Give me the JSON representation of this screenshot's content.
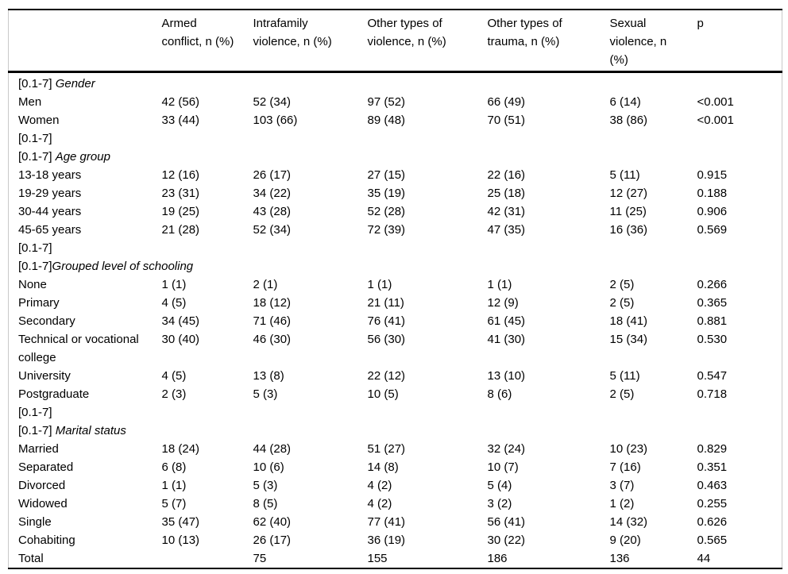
{
  "page": {
    "background": "#ffffff",
    "text_color": "#000000",
    "rule_color": "#000000",
    "side_border_color": "#c9c9c9"
  },
  "table": {
    "row_header_label": "",
    "columns": [
      "Armed conflict, n (%)",
      "Intrafamily violence, n (%)",
      "Other types of violence, n (%)",
      "Other types of trauma, n (%)",
      "Sexual violence, n (%)",
      "p"
    ],
    "rows": [
      {
        "type": "section",
        "prefix": "[0.1-7] ",
        "label": "Gender"
      },
      {
        "type": "data",
        "label": "Men",
        "values": [
          "42 (56)",
          "52 (34)",
          "97 (52)",
          "66 (49)",
          "6 (14)",
          "<0.001"
        ]
      },
      {
        "type": "data",
        "label": "Women",
        "values": [
          "33 (44)",
          "103 (66)",
          "89 (48)",
          "70 (51)",
          "38 (86)",
          "<0.001"
        ]
      },
      {
        "type": "spacer",
        "prefix": "[0.1-7]",
        "label": ""
      },
      {
        "type": "section",
        "prefix": "[0.1-7] ",
        "label": "Age group"
      },
      {
        "type": "data",
        "label": "13-18 years",
        "values": [
          "12 (16)",
          "26 (17)",
          "27 (15)",
          "22 (16)",
          "5 (11)",
          "0.915"
        ]
      },
      {
        "type": "data",
        "label": "19-29 years",
        "values": [
          "23 (31)",
          "34 (22)",
          "35 (19)",
          "25 (18)",
          "12 (27)",
          "0.188"
        ]
      },
      {
        "type": "data",
        "label": "30-44 years",
        "values": [
          "19 (25)",
          "43 (28)",
          "52 (28)",
          "42 (31)",
          "11 (25)",
          "0.906"
        ]
      },
      {
        "type": "data",
        "label": "45-65 years",
        "values": [
          "21 (28)",
          "52 (34)",
          "72 (39)",
          "47 (35)",
          "16 (36)",
          "0.569"
        ]
      },
      {
        "type": "spacer",
        "prefix": "[0.1-7]",
        "label": ""
      },
      {
        "type": "section",
        "prefix": "[0.1-7]",
        "label": "Grouped level of schooling"
      },
      {
        "type": "data",
        "label": "None",
        "values": [
          "1 (1)",
          "2 (1)",
          "1 (1)",
          "1 (1)",
          "2 (5)",
          "0.266"
        ]
      },
      {
        "type": "data",
        "label": "Primary",
        "values": [
          "4 (5)",
          "18 (12)",
          "21 (11)",
          "12 (9)",
          "2 (5)",
          "0.365"
        ]
      },
      {
        "type": "data",
        "label": "Secondary",
        "values": [
          "34 (45)",
          "71 (46)",
          "76 (41)",
          "61 (45)",
          "18 (41)",
          "0.881"
        ]
      },
      {
        "type": "data",
        "label": "Technical or vocational college",
        "values": [
          "30 (40)",
          "46 (30)",
          "56 (30)",
          "41 (30)",
          "15 (34)",
          "0.530"
        ]
      },
      {
        "type": "data",
        "label": "University",
        "values": [
          "4 (5)",
          "13 (8)",
          "22 (12)",
          "13 (10)",
          "5 (11)",
          "0.547"
        ]
      },
      {
        "type": "data",
        "label": "Postgraduate",
        "values": [
          "2 (3)",
          "5 (3)",
          "10 (5)",
          "8 (6)",
          "2 (5)",
          "0.718"
        ]
      },
      {
        "type": "spacer",
        "prefix": "[0.1-7]",
        "label": ""
      },
      {
        "type": "section",
        "prefix": "[0.1-7] ",
        "label": "Marital status"
      },
      {
        "type": "data",
        "label": "Married",
        "values": [
          "18 (24)",
          "44 (28)",
          "51 (27)",
          "32 (24)",
          "10 (23)",
          "0.829"
        ]
      },
      {
        "type": "data",
        "label": "Separated",
        "values": [
          "6 (8)",
          "10 (6)",
          "14 (8)",
          "10 (7)",
          "7 (16)",
          "0.351"
        ]
      },
      {
        "type": "data",
        "label": "Divorced",
        "values": [
          "1 (1)",
          "5 (3)",
          "4 (2)",
          "5 (4)",
          "3 (7)",
          "0.463"
        ]
      },
      {
        "type": "data",
        "label": "Widowed",
        "values": [
          "5 (7)",
          "8 (5)",
          "4 (2)",
          "3 (2)",
          "1 (2)",
          "0.255"
        ]
      },
      {
        "type": "data",
        "label": "Single",
        "values": [
          "35 (47)",
          "62 (40)",
          "77 (41)",
          "56 (41)",
          "14 (32)",
          "0.626"
        ]
      },
      {
        "type": "data",
        "label": "Cohabiting",
        "values": [
          "10 (13)",
          "26 (17)",
          "36 (19)",
          "30 (22)",
          "9 (20)",
          "0.565"
        ]
      },
      {
        "type": "data",
        "label": "Total",
        "values": [
          "",
          "75",
          "155",
          "186",
          "136",
          "44"
        ]
      }
    ]
  }
}
